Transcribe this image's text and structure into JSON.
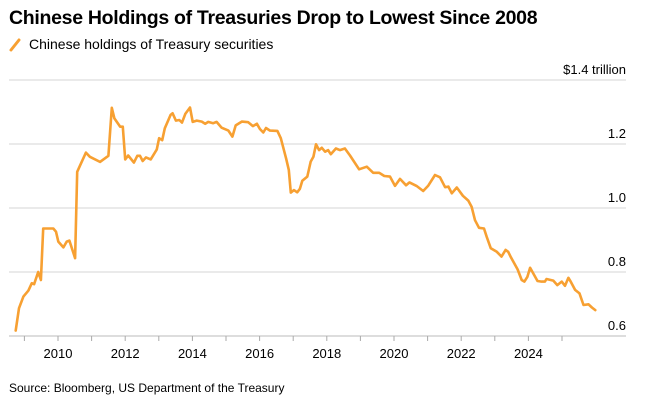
{
  "chart_data": {
    "type": "line",
    "title": "Chinese Holdings of Treasuries Drop to Lowest Since 2008",
    "legend": [
      "Chinese holdings of Treasury securities"
    ],
    "legend_placement": "top-left",
    "y_unit_label": "$1.4 trillion",
    "yticks": [
      "0.6",
      "0.8",
      "1.0",
      "1.2",
      "$1.4 trillion"
    ],
    "ytick_values": [
      0.6,
      0.8,
      1.0,
      1.2,
      1.4
    ],
    "xticks": [
      "2010",
      "2012",
      "2014",
      "2016",
      "2018",
      "2020",
      "2022",
      "2024"
    ],
    "xtick_values": [
      2010,
      2012,
      2014,
      2016,
      2018,
      2020,
      2022,
      2024
    ],
    "xlim": [
      2008.5,
      2026.8
    ],
    "ylim": [
      0.6,
      1.4
    ],
    "y_axis_side": "right",
    "grid": "horizontal",
    "color": "#f7a032",
    "series": [
      {
        "name": "Chinese holdings of Treasury securities",
        "x": [
          2008.74,
          2008.84,
          2008.97,
          2009.12,
          2009.22,
          2009.29,
          2009.41,
          2009.49,
          2009.56,
          2009.86,
          2009.94,
          2010.01,
          2010.16,
          2010.26,
          2010.34,
          2010.51,
          2010.57,
          2010.65,
          2010.83,
          2010.95,
          2011.25,
          2011.5,
          2011.6,
          2011.68,
          2011.85,
          2011.93,
          2012.0,
          2012.09,
          2012.26,
          2012.36,
          2012.44,
          2012.52,
          2012.62,
          2012.76,
          2012.94,
          2013.01,
          2013.1,
          2013.18,
          2013.35,
          2013.41,
          2013.51,
          2013.61,
          2013.69,
          2013.79,
          2013.93,
          2014.01,
          2014.13,
          2014.28,
          2014.38,
          2014.47,
          2014.62,
          2014.72,
          2014.87,
          2015.07,
          2015.19,
          2015.29,
          2015.47,
          2015.66,
          2015.8,
          2015.92,
          2016.01,
          2016.11,
          2016.19,
          2016.31,
          2016.53,
          2016.63,
          2016.79,
          2016.87,
          2016.93,
          2017.02,
          2017.12,
          2017.2,
          2017.27,
          2017.42,
          2017.52,
          2017.6,
          2017.68,
          2017.77,
          2017.85,
          2017.95,
          2018.04,
          2018.12,
          2018.27,
          2018.39,
          2018.54,
          2018.69,
          2018.96,
          2019.19,
          2019.38,
          2019.56,
          2019.71,
          2019.88,
          2020.03,
          2020.18,
          2020.36,
          2020.46,
          2020.67,
          2020.87,
          2021.02,
          2021.22,
          2021.37,
          2021.52,
          2021.62,
          2021.72,
          2021.87,
          2022.05,
          2022.21,
          2022.31,
          2022.41,
          2022.53,
          2022.68,
          2022.76,
          2022.88,
          2023.06,
          2023.2,
          2023.32,
          2023.4,
          2023.48,
          2023.68,
          2023.8,
          2023.88,
          2023.97,
          2024.05,
          2024.27,
          2024.39,
          2024.49,
          2024.54,
          2024.74,
          2024.86,
          2024.99,
          2025.09,
          2025.19,
          2025.26,
          2025.39,
          2025.52,
          2025.64,
          2025.79,
          2025.89,
          2025.99
        ],
        "values": [
          0.617,
          0.687,
          0.723,
          0.742,
          0.765,
          0.762,
          0.8,
          0.775,
          0.936,
          0.936,
          0.926,
          0.895,
          0.877,
          0.895,
          0.898,
          0.843,
          1.113,
          1.131,
          1.173,
          1.16,
          1.144,
          1.163,
          1.313,
          1.28,
          1.254,
          1.254,
          1.152,
          1.164,
          1.142,
          1.163,
          1.163,
          1.147,
          1.158,
          1.152,
          1.183,
          1.218,
          1.212,
          1.249,
          1.291,
          1.296,
          1.273,
          1.275,
          1.267,
          1.294,
          1.314,
          1.269,
          1.273,
          1.27,
          1.263,
          1.269,
          1.265,
          1.269,
          1.251,
          1.242,
          1.223,
          1.258,
          1.27,
          1.268,
          1.256,
          1.263,
          1.247,
          1.236,
          1.25,
          1.242,
          1.241,
          1.218,
          1.155,
          1.119,
          1.048,
          1.056,
          1.049,
          1.06,
          1.085,
          1.098,
          1.145,
          1.16,
          1.199,
          1.181,
          1.188,
          1.176,
          1.181,
          1.168,
          1.186,
          1.181,
          1.186,
          1.164,
          1.121,
          1.129,
          1.11,
          1.11,
          1.1,
          1.098,
          1.069,
          1.091,
          1.071,
          1.08,
          1.069,
          1.053,
          1.07,
          1.103,
          1.096,
          1.065,
          1.067,
          1.046,
          1.064,
          1.038,
          1.023,
          1.004,
          0.962,
          0.938,
          0.936,
          0.91,
          0.874,
          0.863,
          0.848,
          0.869,
          0.863,
          0.846,
          0.808,
          0.775,
          0.77,
          0.785,
          0.813,
          0.772,
          0.77,
          0.77,
          0.778,
          0.773,
          0.759,
          0.77,
          0.757,
          0.782,
          0.77,
          0.744,
          0.733,
          0.697,
          0.699,
          0.689,
          0.681
        ]
      }
    ],
    "source": "Source: Bloomberg, US Department of the Treasury"
  }
}
